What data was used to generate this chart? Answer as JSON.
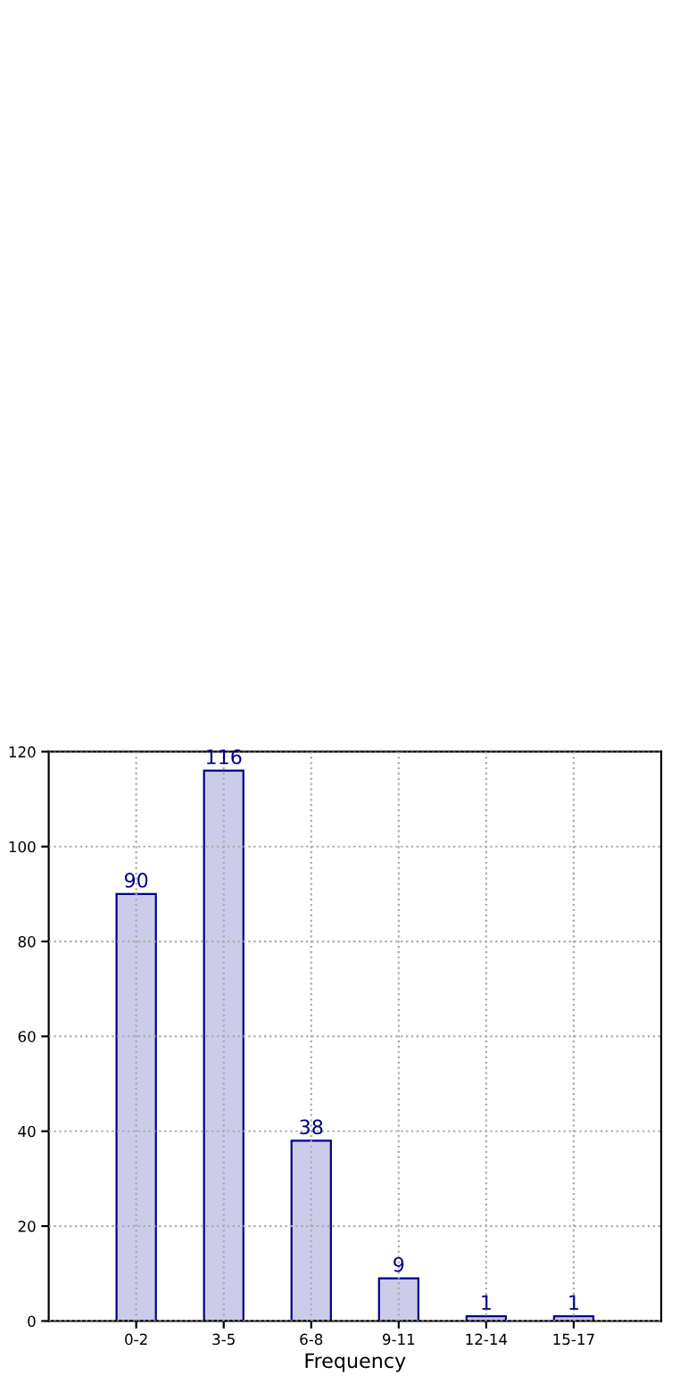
{
  "chart_data": {
    "type": "bar",
    "xlabel": "Frequency",
    "categories": [
      "0-2",
      "3-5",
      "6-8",
      "9-11",
      "12-14",
      "15-17"
    ],
    "values": [
      90,
      116,
      38,
      9,
      1,
      1
    ],
    "color": "#ccccea",
    "ylim": [
      0,
      120
    ],
    "yticks": [
      0,
      20,
      40,
      60,
      80,
      100,
      120
    ],
    "grid": true,
    "line_style": "dotted",
    "data_labels": true
  }
}
